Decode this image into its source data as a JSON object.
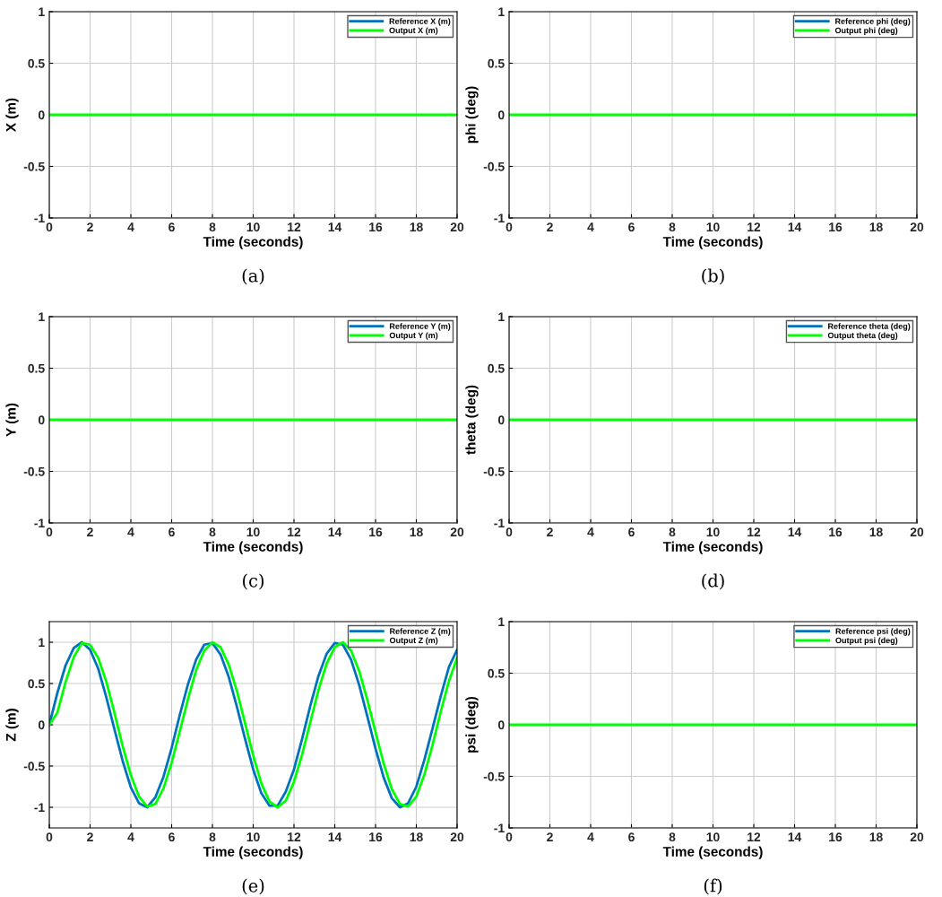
{
  "chart_data": [
    {
      "type": "line",
      "xlabel": "Time (seconds)",
      "ylabel": "X (m)",
      "annotations": [
        "(a)"
      ],
      "xlim": [
        0,
        20
      ],
      "ylim": [
        -1,
        1
      ],
      "xticks": [
        0,
        2,
        4,
        6,
        8,
        10,
        12,
        14,
        16,
        18,
        20
      ],
      "yticks": [
        -1,
        -0.5,
        0,
        0.5,
        1
      ],
      "grid": true,
      "legend": "top right",
      "series": [
        {
          "name": "Reference X (m)",
          "color": "#0072bd"
        },
        {
          "name": "Output X (m)",
          "color": "#00ff00",
          "x": [
            0,
            20
          ],
          "values": [
            0,
            0
          ]
        }
      ]
    },
    {
      "type": "line",
      "xlabel": "Time (seconds)",
      "ylabel": "phi (deg)",
      "annotations": [
        "(b)"
      ],
      "xlim": [
        0,
        20
      ],
      "ylim": [
        -1,
        1
      ],
      "xticks": [
        0,
        2,
        4,
        6,
        8,
        10,
        12,
        14,
        16,
        18,
        20
      ],
      "yticks": [
        -1,
        -0.5,
        0,
        0.5,
        1
      ],
      "grid": true,
      "legend": "top right",
      "series": [
        {
          "name": "Reference phi (deg)",
          "color": "#0072bd"
        },
        {
          "name": "Output phi (deg)",
          "color": "#00ff00",
          "x": [
            0,
            20
          ],
          "values": [
            0,
            0
          ]
        }
      ]
    },
    {
      "type": "line",
      "xlabel": "Time (seconds)",
      "ylabel": "Y (m)",
      "annotations": [
        "(c)"
      ],
      "xlim": [
        0,
        20
      ],
      "ylim": [
        -1,
        1
      ],
      "xticks": [
        0,
        2,
        4,
        6,
        8,
        10,
        12,
        14,
        16,
        18,
        20
      ],
      "yticks": [
        -1,
        -0.5,
        0,
        0.5,
        1
      ],
      "grid": true,
      "legend": "top right",
      "series": [
        {
          "name": "Reference Y (m)",
          "color": "#0072bd"
        },
        {
          "name": "Output Y (m)",
          "color": "#00ff00",
          "x": [
            0,
            20
          ],
          "values": [
            0,
            0
          ]
        }
      ]
    },
    {
      "type": "line",
      "xlabel": "Time (seconds)",
      "ylabel": "theta (deg)",
      "annotations": [
        "(d)"
      ],
      "xlim": [
        0,
        20
      ],
      "ylim": [
        -1,
        1
      ],
      "xticks": [
        0,
        2,
        4,
        6,
        8,
        10,
        12,
        14,
        16,
        18,
        20
      ],
      "yticks": [
        -1,
        -0.5,
        0,
        0.5,
        1
      ],
      "grid": true,
      "legend": "top right",
      "series": [
        {
          "name": "Reference theta (deg)",
          "color": "#0072bd"
        },
        {
          "name": "Output theta (deg)",
          "color": "#00ff00",
          "x": [
            0,
            20
          ],
          "values": [
            0,
            0
          ]
        }
      ]
    },
    {
      "type": "line",
      "xlabel": "Time (seconds)",
      "ylabel": "Z (m)",
      "annotations": [
        "(e)"
      ],
      "xlim": [
        0,
        20
      ],
      "ylim": [
        -1.25,
        1.25
      ],
      "xticks": [
        0,
        2,
        4,
        6,
        8,
        10,
        12,
        14,
        16,
        18,
        20
      ],
      "yticks": [
        -1,
        -0.5,
        0,
        0.5,
        1
      ],
      "grid": true,
      "legend": "top right",
      "series": [
        {
          "name": "Reference Z (m)",
          "color": "#0072bd",
          "x": [
            0,
            0.4,
            0.8,
            1.2,
            1.6,
            2.0,
            2.4,
            2.8,
            3.2,
            3.6,
            4.0,
            4.4,
            4.8,
            5.2,
            5.6,
            6.0,
            6.4,
            6.8,
            7.2,
            7.6,
            8.0,
            8.4,
            8.8,
            9.2,
            9.6,
            10.0,
            10.4,
            10.8,
            11.2,
            11.6,
            12.0,
            12.4,
            12.8,
            13.2,
            13.6,
            14.0,
            14.4,
            14.8,
            15.2,
            15.6,
            16.0,
            16.4,
            16.8,
            17.2,
            17.6,
            18.0,
            18.4,
            18.8,
            19.2,
            19.6,
            20.0
          ],
          "values": [
            0,
            0.39,
            0.72,
            0.93,
            1.0,
            0.91,
            0.68,
            0.33,
            -0.06,
            -0.44,
            -0.76,
            -0.95,
            -1.0,
            -0.88,
            -0.63,
            -0.28,
            0.12,
            0.49,
            0.79,
            0.97,
            0.99,
            0.85,
            0.58,
            0.22,
            -0.17,
            -0.54,
            -0.83,
            -0.98,
            -0.98,
            -0.81,
            -0.54,
            -0.17,
            0.23,
            0.59,
            0.86,
            0.99,
            0.97,
            0.79,
            0.48,
            0.1,
            -0.29,
            -0.64,
            -0.89,
            -1.0,
            -0.95,
            -0.75,
            -0.42,
            -0.04,
            0.35,
            0.7,
            0.91
          ]
        },
        {
          "name": "Output Z (m)",
          "color": "#00ff00",
          "x": [
            0,
            0.4,
            0.8,
            1.2,
            1.6,
            2.0,
            2.4,
            2.8,
            3.2,
            3.6,
            4.0,
            4.4,
            4.8,
            5.2,
            5.6,
            6.0,
            6.4,
            6.8,
            7.2,
            7.6,
            8.0,
            8.4,
            8.8,
            9.2,
            9.6,
            10.0,
            10.4,
            10.8,
            11.2,
            11.6,
            12.0,
            12.4,
            12.8,
            13.2,
            13.6,
            14.0,
            14.4,
            14.8,
            15.2,
            15.6,
            16.0,
            16.4,
            16.8,
            17.2,
            17.6,
            18.0,
            18.4,
            18.8,
            19.2,
            19.6,
            20.0
          ],
          "values": [
            0,
            0.15,
            0.52,
            0.82,
            0.99,
            0.97,
            0.81,
            0.52,
            0.14,
            -0.26,
            -0.61,
            -0.87,
            -0.99,
            -0.96,
            -0.77,
            -0.46,
            -0.08,
            0.31,
            0.66,
            0.9,
            1.0,
            0.94,
            0.73,
            0.41,
            0.02,
            -0.37,
            -0.71,
            -0.93,
            -1.0,
            -0.92,
            -0.69,
            -0.36,
            0.03,
            0.42,
            0.74,
            0.94,
            1.0,
            0.9,
            0.65,
            0.3,
            -0.09,
            -0.47,
            -0.78,
            -0.96,
            -0.99,
            -0.87,
            -0.6,
            -0.24,
            0.16,
            0.53,
            0.81
          ]
        }
      ]
    },
    {
      "type": "line",
      "xlabel": "Time (seconds)",
      "ylabel": "psi (deg)",
      "annotations": [
        "(f)"
      ],
      "xlim": [
        0,
        20
      ],
      "ylim": [
        -1,
        1
      ],
      "xticks": [
        0,
        2,
        4,
        6,
        8,
        10,
        12,
        14,
        16,
        18,
        20
      ],
      "yticks": [
        -1,
        -0.5,
        0,
        0.5,
        1
      ],
      "grid": true,
      "legend": "top right",
      "series": [
        {
          "name": "Reference psi (deg)",
          "color": "#0072bd"
        },
        {
          "name": "Output psi (deg)",
          "color": "#00ff00",
          "x": [
            0,
            20
          ],
          "values": [
            0,
            0
          ]
        }
      ]
    }
  ]
}
